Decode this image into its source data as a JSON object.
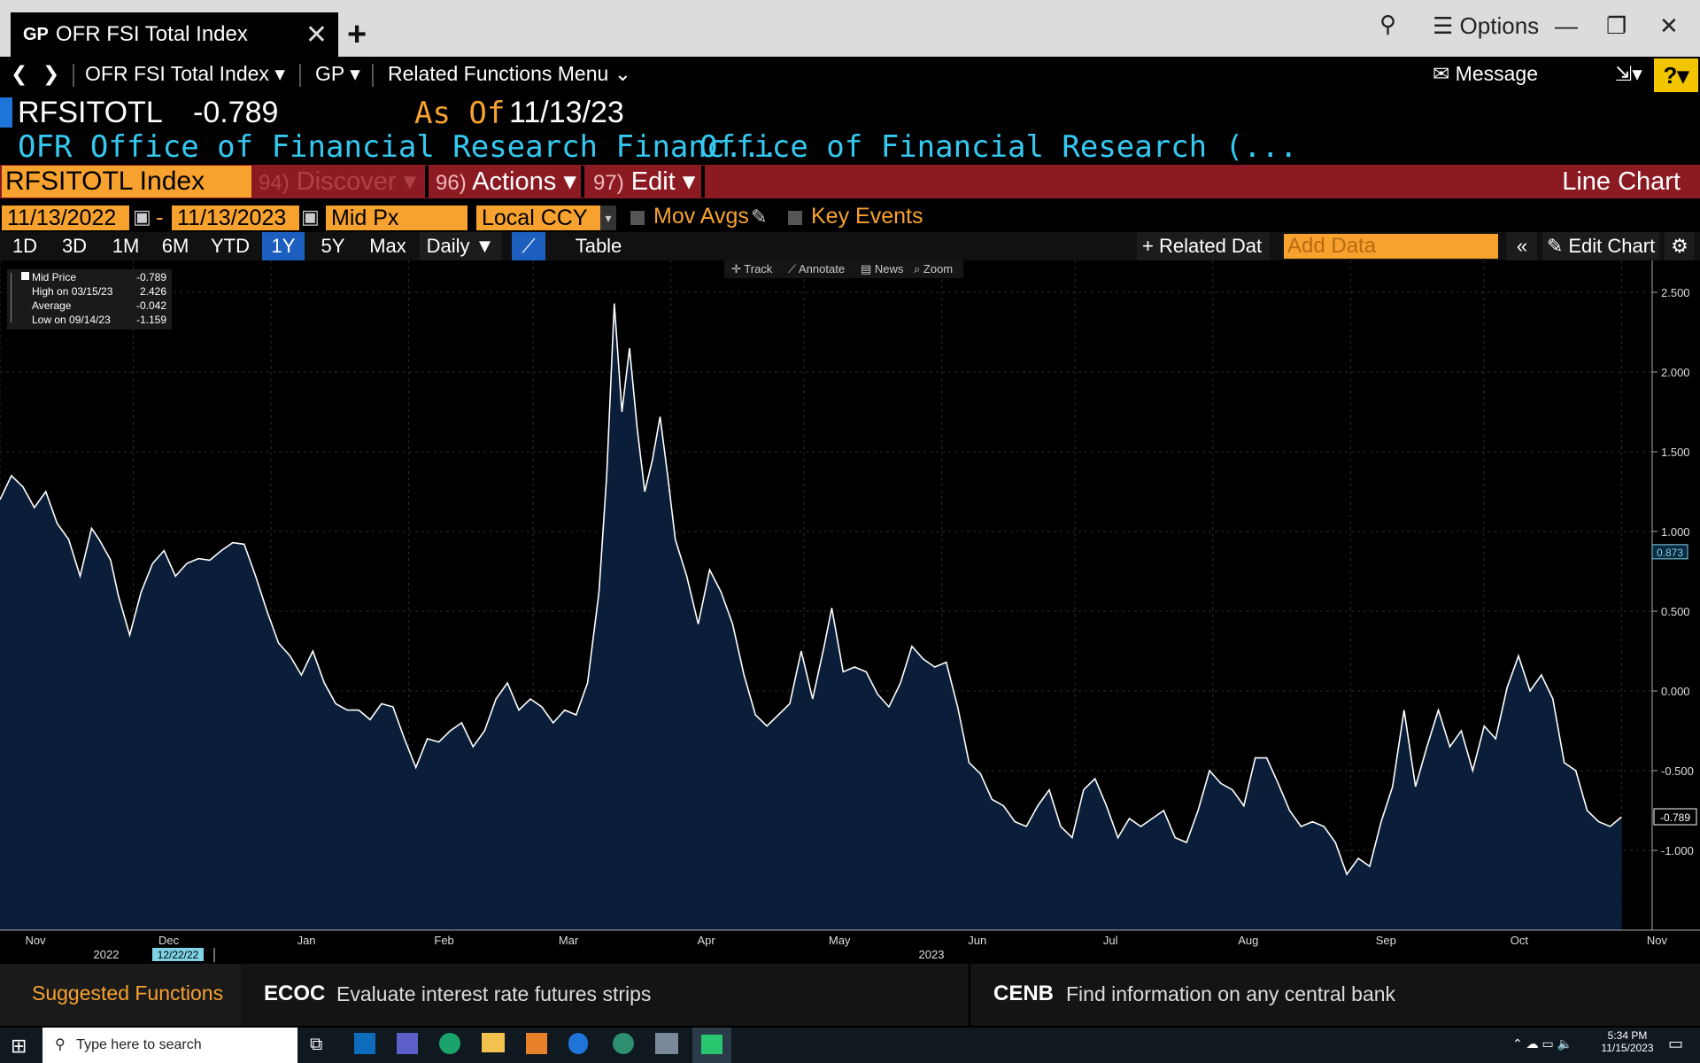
{
  "window": {
    "tab_prefix": "GP",
    "tab_title": "OFR FSI Total Index",
    "options_label": "Options"
  },
  "nav": {
    "security_menu": "OFR FSI Total Index",
    "function_menu": "GP",
    "related_functions": "Related Functions Menu",
    "message_label": "Message",
    "help_label": "?"
  },
  "header": {
    "ticker": "RFSITOTL",
    "price": "-0.789",
    "as_of_label": "As Of",
    "as_of_date": "11/13/23",
    "desc_left": "OFR Office of Financial Research Financ...",
    "desc_right": "Office of Financial Research (..."
  },
  "toolbar": {
    "security_field": "RFSITOTL Index",
    "discover_num": "94)",
    "discover_label": "Discover",
    "actions_num": "96)",
    "actions_label": "Actions",
    "edit_num": "97)",
    "edit_label": "Edit",
    "chart_type": "Line Chart"
  },
  "controls": {
    "start_date": "11/13/2022",
    "end_date": "11/13/2023",
    "dash": "-",
    "field": "Mid Px",
    "currency": "Local CCY",
    "mov_avgs": "Mov Avgs",
    "key_events": "Key Events"
  },
  "periods": [
    "1D",
    "3D",
    "1M",
    "6M",
    "YTD",
    "1Y",
    "5Y",
    "Max"
  ],
  "active_period": "1Y",
  "frequency": "Daily",
  "table_label": "Table",
  "related_data_label": "Related Dat",
  "add_data_placeholder": "Add Data",
  "edit_chart_label": "Edit Chart",
  "chart_tools": [
    "Track",
    "Annotate",
    "News",
    "Zoom"
  ],
  "legend": {
    "rows": [
      {
        "label": "Mid Price",
        "value": "-0.789"
      },
      {
        "label": "High on 03/15/23",
        "value": "2.426"
      },
      {
        "label": "Average",
        "value": "-0.042"
      },
      {
        "label": "Low on 09/14/23",
        "value": "-1.159"
      }
    ]
  },
  "chart_data": {
    "type": "area",
    "series": [
      {
        "name": "Mid Price"
      }
    ],
    "ylim": [
      -1.5,
      2.7
    ],
    "yticks": [
      "2.500",
      "2.000",
      "1.500",
      "1.000",
      "0.500",
      "0.000",
      "-0.500",
      "-1.000"
    ],
    "ytick_values": [
      2.5,
      2.0,
      1.5,
      1.0,
      0.5,
      0.0,
      -0.5,
      -1.0
    ],
    "xticks": [
      "Nov",
      "Dec",
      "Jan",
      "Feb",
      "Mar",
      "Apr",
      "May",
      "Jun",
      "Jul",
      "Aug",
      "Sep",
      "Oct",
      "Nov"
    ],
    "year_labels": [
      "2022",
      "2023"
    ],
    "hover_date": "12/22/22",
    "last_value_label": "-0.789",
    "marker_label": "0.873",
    "marker_value": 0.873,
    "grid": true,
    "x_range_days": [
      0,
      365
    ],
    "points": [
      [
        0,
        1.2
      ],
      [
        3,
        1.35
      ],
      [
        6,
        1.28
      ],
      [
        9,
        1.15
      ],
      [
        12,
        1.25
      ],
      [
        15,
        1.05
      ],
      [
        18,
        0.95
      ],
      [
        21,
        0.72
      ],
      [
        24,
        1.02
      ],
      [
        26,
        0.95
      ],
      [
        29,
        0.82
      ],
      [
        31,
        0.6
      ],
      [
        34,
        0.35
      ],
      [
        37,
        0.62
      ],
      [
        40,
        0.8
      ],
      [
        43,
        0.88
      ],
      [
        46,
        0.72
      ],
      [
        49,
        0.8
      ],
      [
        52,
        0.83
      ],
      [
        55,
        0.82
      ],
      [
        58,
        0.88
      ],
      [
        61,
        0.93
      ],
      [
        64,
        0.92
      ],
      [
        67,
        0.72
      ],
      [
        70,
        0.5
      ],
      [
        73,
        0.3
      ],
      [
        76,
        0.22
      ],
      [
        79,
        0.1
      ],
      [
        82,
        0.25
      ],
      [
        85,
        0.05
      ],
      [
        88,
        -0.08
      ],
      [
        91,
        -0.12
      ],
      [
        94,
        -0.12
      ],
      [
        97,
        -0.18
      ],
      [
        100,
        -0.08
      ],
      [
        103,
        -0.1
      ],
      [
        106,
        -0.3
      ],
      [
        109,
        -0.48
      ],
      [
        112,
        -0.3
      ],
      [
        115,
        -0.32
      ],
      [
        118,
        -0.25
      ],
      [
        121,
        -0.2
      ],
      [
        124,
        -0.35
      ],
      [
        127,
        -0.25
      ],
      [
        130,
        -0.05
      ],
      [
        133,
        0.05
      ],
      [
        136,
        -0.12
      ],
      [
        139,
        -0.05
      ],
      [
        142,
        -0.1
      ],
      [
        145,
        -0.2
      ],
      [
        148,
        -0.12
      ],
      [
        151,
        -0.15
      ],
      [
        154,
        0.05
      ],
      [
        157,
        0.62
      ],
      [
        159,
        1.35
      ],
      [
        161,
        2.43
      ],
      [
        163,
        1.75
      ],
      [
        165,
        2.15
      ],
      [
        167,
        1.65
      ],
      [
        169,
        1.25
      ],
      [
        171,
        1.45
      ],
      [
        173,
        1.72
      ],
      [
        175,
        1.35
      ],
      [
        177,
        0.95
      ],
      [
        180,
        0.72
      ],
      [
        183,
        0.42
      ],
      [
        186,
        0.76
      ],
      [
        189,
        0.62
      ],
      [
        192,
        0.42
      ],
      [
        195,
        0.1
      ],
      [
        198,
        -0.15
      ],
      [
        201,
        -0.22
      ],
      [
        204,
        -0.15
      ],
      [
        207,
        -0.08
      ],
      [
        210,
        0.25
      ],
      [
        213,
        -0.05
      ],
      [
        216,
        0.28
      ],
      [
        218,
        0.52
      ],
      [
        221,
        0.12
      ],
      [
        224,
        0.15
      ],
      [
        227,
        0.12
      ],
      [
        230,
        -0.02
      ],
      [
        233,
        -0.1
      ],
      [
        236,
        0.05
      ],
      [
        239,
        0.28
      ],
      [
        242,
        0.2
      ],
      [
        245,
        0.15
      ],
      [
        248,
        0.18
      ],
      [
        251,
        -0.1
      ],
      [
        254,
        -0.45
      ],
      [
        257,
        -0.52
      ],
      [
        260,
        -0.68
      ],
      [
        263,
        -0.72
      ],
      [
        266,
        -0.82
      ],
      [
        269,
        -0.85
      ],
      [
        272,
        -0.72
      ],
      [
        275,
        -0.62
      ],
      [
        278,
        -0.85
      ],
      [
        281,
        -0.92
      ],
      [
        284,
        -0.62
      ],
      [
        287,
        -0.55
      ],
      [
        290,
        -0.72
      ],
      [
        293,
        -0.92
      ],
      [
        296,
        -0.8
      ],
      [
        299,
        -0.85
      ],
      [
        302,
        -0.8
      ],
      [
        305,
        -0.75
      ],
      [
        308,
        -0.92
      ],
      [
        311,
        -0.95
      ],
      [
        314,
        -0.75
      ],
      [
        317,
        -0.5
      ],
      [
        320,
        -0.58
      ],
      [
        323,
        -0.62
      ],
      [
        326,
        -0.72
      ],
      [
        329,
        -0.42
      ],
      [
        332,
        -0.42
      ],
      [
        335,
        -0.58
      ],
      [
        338,
        -0.75
      ],
      [
        341,
        -0.85
      ],
      [
        344,
        -0.82
      ],
      [
        347,
        -0.85
      ],
      [
        350,
        -0.95
      ],
      [
        353,
        -1.15
      ],
      [
        356,
        -1.05
      ],
      [
        359,
        -1.1
      ],
      [
        362,
        -0.82
      ],
      [
        365,
        -0.6
      ],
      [
        368,
        -0.12
      ],
      [
        371,
        -0.6
      ],
      [
        374,
        -0.35
      ],
      [
        377,
        -0.12
      ],
      [
        380,
        -0.35
      ],
      [
        383,
        -0.25
      ],
      [
        386,
        -0.5
      ],
      [
        389,
        -0.22
      ],
      [
        392,
        -0.3
      ],
      [
        395,
        0.02
      ],
      [
        398,
        0.22
      ],
      [
        401,
        0.0
      ],
      [
        404,
        0.1
      ],
      [
        407,
        -0.05
      ],
      [
        410,
        -0.45
      ],
      [
        413,
        -0.5
      ],
      [
        416,
        -0.75
      ],
      [
        419,
        -0.82
      ],
      [
        422,
        -0.85
      ],
      [
        425,
        -0.79
      ]
    ]
  },
  "suggestions": {
    "title": "Suggested Functions",
    "items": [
      {
        "code": "ECOC",
        "desc": "Evaluate interest rate futures strips"
      },
      {
        "code": "CENB",
        "desc": "Find information on any central bank"
      }
    ]
  },
  "taskbar": {
    "search_placeholder": "Type here to search",
    "time": "5:34 PM",
    "date": "11/15/2023"
  }
}
